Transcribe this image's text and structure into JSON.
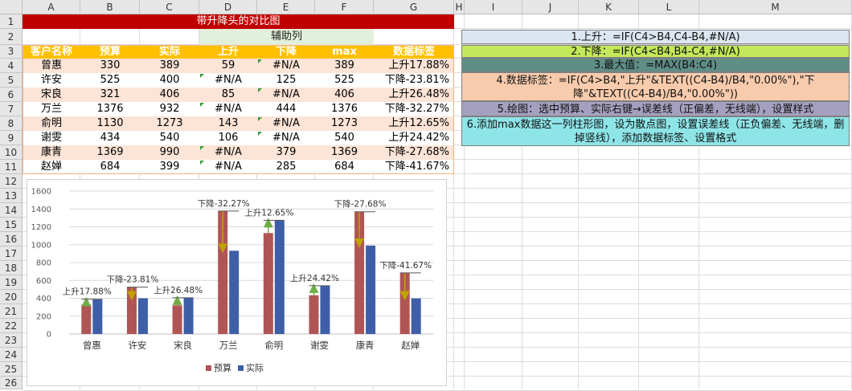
{
  "sheet": {
    "columns": [
      "A",
      "B",
      "C",
      "D",
      "E",
      "F",
      "G",
      "H",
      "I",
      "J",
      "K",
      "L",
      "M"
    ],
    "rows": [
      "1",
      "2",
      "3",
      "4",
      "5",
      "6",
      "7",
      "8",
      "9",
      "10",
      "11",
      "12",
      "13",
      "14",
      "15",
      "16",
      "17",
      "18",
      "19",
      "20",
      "21",
      "22",
      "23",
      "24",
      "25",
      "26"
    ],
    "title": "带升降头的对比图",
    "aux_label": "辅助列",
    "headers": [
      "客户名称",
      "预算",
      "实际",
      "上升",
      "下降",
      "max",
      "数据标签"
    ],
    "table": [
      [
        "曾惠",
        "330",
        "389",
        "59",
        "#N/A",
        "389",
        "上升17.88%"
      ],
      [
        "许安",
        "525",
        "400",
        "#N/A",
        "125",
        "525",
        "下降-23.81%"
      ],
      [
        "宋良",
        "321",
        "406",
        "85",
        "#N/A",
        "406",
        "上升26.48%"
      ],
      [
        "万兰",
        "1376",
        "932",
        "#N/A",
        "444",
        "1376",
        "下降-32.27%"
      ],
      [
        "俞明",
        "1130",
        "1273",
        "143",
        "#N/A",
        "1273",
        "上升12.65%"
      ],
      [
        "谢雯",
        "434",
        "540",
        "106",
        "#N/A",
        "540",
        "上升24.42%"
      ],
      [
        "康青",
        "1369",
        "990",
        "#N/A",
        "379",
        "1369",
        "下降-27.68%"
      ],
      [
        "赵婵",
        "684",
        "399",
        "#N/A",
        "285",
        "684",
        "下降-41.67%"
      ]
    ],
    "colors": {
      "title_bg": "#c00000",
      "header_bg": "#ffc000",
      "stripe": "#fce4d6",
      "aux_bg": "#e2efda"
    }
  },
  "notes": [
    {
      "text": "1.上升：=IF(C4>B4,C4-B4,#N/A)",
      "bg": "#dce6f1"
    },
    {
      "text": "2.下降：=IF(C4<B4,B4-C4,#N/A)",
      "bg": "#c4e85b"
    },
    {
      "text": "3.最大值：=MAX(B4:C4)",
      "bg": "#5f8e86"
    },
    {
      "text": "4.数据标签：=IF(C4>B4,\"上升\"&TEXT((C4-B4)/B4,\"0.00%\"),\"下降\"&TEXT((C4-B4)/B4,\"0.00%\"))",
      "bg": "#f8cbad"
    },
    {
      "text": "5.绘图：选中预算、实际右键→误差线（正偏差，无线端），设置样式",
      "bg": "#a6a0c0"
    },
    {
      "text": "6.添加max数据这一列柱形图，设为散点图，设置误差线（正负偏差、无线端，删掉竖线），添加数据标签、设置格式",
      "bg": "#8ee5e8"
    }
  ],
  "chart_data": {
    "type": "bar",
    "categories": [
      "曾惠",
      "许安",
      "宋良",
      "万兰",
      "俞明",
      "谢雯",
      "康青",
      "赵婵"
    ],
    "series": [
      {
        "name": "预算",
        "values": [
          330,
          525,
          321,
          1376,
          1130,
          434,
          1369,
          684
        ],
        "color": "#b05555"
      },
      {
        "name": "实际",
        "values": [
          389,
          400,
          406,
          932,
          1273,
          540,
          990,
          399
        ],
        "color": "#3e5fa8"
      }
    ],
    "labels": [
      "上升17.88%",
      "下降-23.81%",
      "上升26.48%",
      "下降-32.27%",
      "上升12.65%",
      "上升24.42%",
      "下降-27.68%",
      "下降-41.67%"
    ],
    "ylim": [
      0,
      1600
    ],
    "yticks": [
      "0",
      "200",
      "400",
      "600",
      "800",
      "1000",
      "1200",
      "1400",
      "1600"
    ],
    "grid": true,
    "legend": "bottom",
    "arrow_colors": {
      "up": "#70ad47",
      "down": "#bfa300"
    }
  }
}
